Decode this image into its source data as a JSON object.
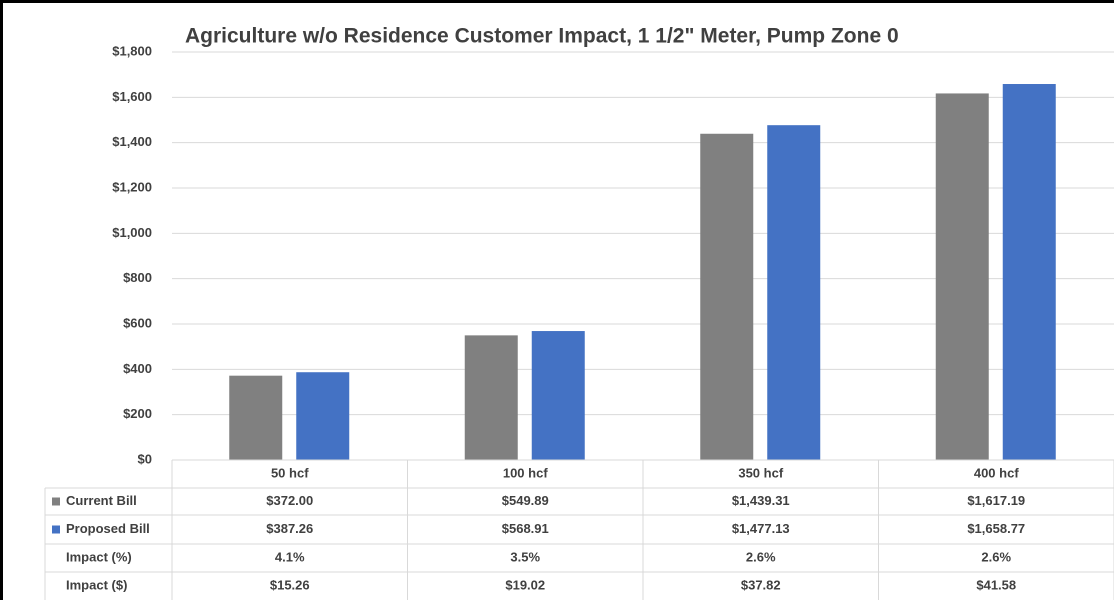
{
  "chart_data": {
    "type": "bar",
    "title": "Agriculture w/o Residence Customer Impact, 1 1/2\" Meter, Pump Zone 0",
    "categories": [
      "50 hcf",
      "100 hcf",
      "350 hcf",
      "400 hcf"
    ],
    "series": [
      {
        "name": "Current Bill",
        "color": "#808080",
        "values": [
          372.0,
          549.89,
          1439.31,
          1617.19
        ],
        "value_labels": [
          "$372.00",
          "$549.89",
          "$1,439.31",
          "$1,617.19"
        ]
      },
      {
        "name": "Proposed Bill",
        "color": "#4472c4",
        "values": [
          387.26,
          568.91,
          1477.13,
          1658.77
        ],
        "value_labels": [
          "$387.26",
          "$568.91",
          "$1,477.13",
          "$1,658.77"
        ]
      }
    ],
    "table_rows": [
      {
        "name": "Impact (%)",
        "cells": [
          "4.1%",
          "3.5%",
          "2.6%",
          "2.6%"
        ]
      },
      {
        "name": "Impact ($)",
        "cells": [
          "$15.26",
          "$19.02",
          "$37.82",
          "$41.58"
        ]
      }
    ],
    "ylim": [
      0,
      1800
    ],
    "yticks": [
      {
        "value": 0,
        "label": "$0"
      },
      {
        "value": 200,
        "label": "$200"
      },
      {
        "value": 400,
        "label": "$400"
      },
      {
        "value": 600,
        "label": "$600"
      },
      {
        "value": 800,
        "label": "$800"
      },
      {
        "value": 1000,
        "label": "$1,000"
      },
      {
        "value": 1200,
        "label": "$1,200"
      },
      {
        "value": 1400,
        "label": "$1,400"
      },
      {
        "value": 1600,
        "label": "$1,600"
      },
      {
        "value": 1800,
        "label": "$1,800"
      }
    ],
    "grid": true
  }
}
